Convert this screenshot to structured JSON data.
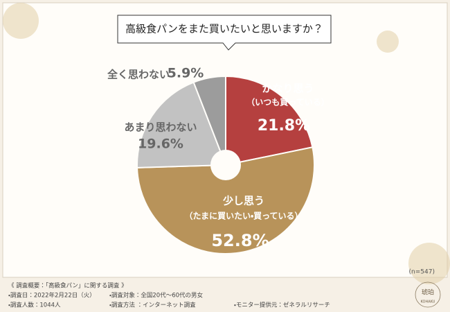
{
  "chart_data": {
    "type": "pie",
    "title": "高級食パンをまた買いたいと思いますか？",
    "categories": [
      "かなり思う",
      "少し思う",
      "あまり思わない",
      "全く思わない"
    ],
    "sublabels": [
      "（いつも買っている）",
      "（たまに買いたい・買っている）",
      null,
      null
    ],
    "values": [
      21.8,
      52.8,
      19.6,
      5.9
    ],
    "value_labels": [
      "21.8%",
      "52.8%",
      "19.6%",
      "5.9%"
    ],
    "colors": [
      "#b5403f",
      "#b8935a",
      "#c2c2c2",
      "#9c9c9c"
    ],
    "note": "(n=547)"
  },
  "footer": {
    "heading": "《 調査概要：「高級食パン」に関する調査 》",
    "items": [
      "・調査日：2022年2月22日（火）",
      "・調査対象：全国20代～60代の男女",
      "・調査人数：1044人",
      "・調査方法 ：インターネット調査",
      "・モニター提供元：ゼネラルリサーチ"
    ]
  },
  "logo": {
    "name": "琥珀",
    "romaji": "KOHAKU"
  }
}
